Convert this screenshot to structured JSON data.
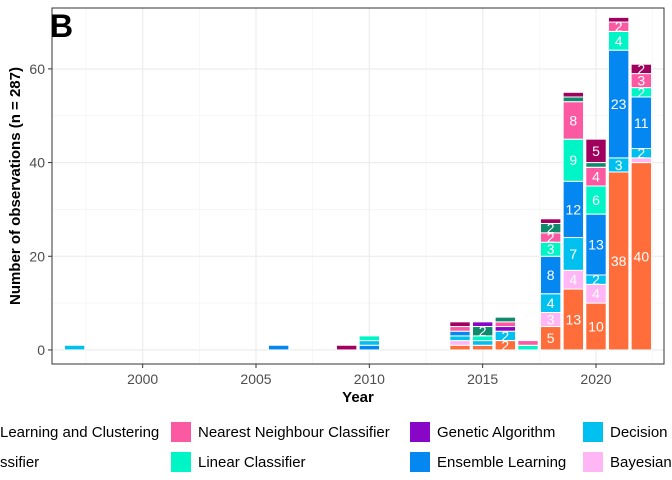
{
  "chart_data": {
    "type": "bar",
    "stacked": true,
    "panel_tag": "B",
    "xlabel": "Year",
    "ylabel": "Number of observations (n = 287)",
    "xlim": [
      1996,
      2023
    ],
    "ylim": [
      -3,
      73
    ],
    "xticks": [
      2000,
      2005,
      2010,
      2015,
      2020
    ],
    "yticks": [
      0,
      20,
      40,
      60
    ],
    "grid": true,
    "legend_position": "bottom",
    "series": [
      {
        "name": "Bayesian",
        "color": "#ff6d3a"
      },
      {
        "name": "Bayesian",
        "color": "#ffb6f5"
      },
      {
        "name": "Decision",
        "color": "#00c0ef"
      },
      {
        "name": "Ensemble Learning",
        "color": "#0587f2"
      },
      {
        "name": "Linear Classifier",
        "color": "#00f5c6"
      },
      {
        "name": "Nearest Neighbour Classifier",
        "color": "#fb5aa3"
      },
      {
        "name": "Genetic Algorithm",
        "color": "#8a06c6"
      },
      {
        "name": "",
        "color": "#0f8a6c"
      },
      {
        "name": "",
        "color": "#a0005e"
      }
    ],
    "bars": [
      {
        "year": 1997,
        "segments": [
          {
            "s": 2,
            "v": 1
          }
        ]
      },
      {
        "year": 2006,
        "segments": [
          {
            "s": 3,
            "v": 1
          }
        ]
      },
      {
        "year": 2009,
        "segments": [
          {
            "s": 8,
            "v": 1
          }
        ]
      },
      {
        "year": 2010,
        "segments": [
          {
            "s": 3,
            "v": 1
          },
          {
            "s": 2,
            "v": 1
          },
          {
            "s": 4,
            "v": 1
          }
        ]
      },
      {
        "year": 2014,
        "segments": [
          {
            "s": 0,
            "v": 1
          },
          {
            "s": 1,
            "v": 1
          },
          {
            "s": 2,
            "v": 1
          },
          {
            "s": 3,
            "v": 1
          },
          {
            "s": 5,
            "v": 1
          },
          {
            "s": 8,
            "v": 1
          }
        ]
      },
      {
        "year": 2015,
        "segments": [
          {
            "s": 0,
            "v": 1
          },
          {
            "s": 2,
            "v": 1
          },
          {
            "s": 4,
            "v": 1
          },
          {
            "s": 7,
            "v": 2,
            "label": "2"
          },
          {
            "s": 6,
            "v": 1
          }
        ]
      },
      {
        "year": 2016,
        "segments": [
          {
            "s": 0,
            "v": 2,
            "label": "2"
          },
          {
            "s": 2,
            "v": 2,
            "label": "2"
          },
          {
            "s": 6,
            "v": 1
          },
          {
            "s": 5,
            "v": 1
          },
          {
            "s": 7,
            "v": 1
          }
        ]
      },
      {
        "year": 2017,
        "segments": [
          {
            "s": 4,
            "v": 1
          },
          {
            "s": 5,
            "v": 1
          }
        ]
      },
      {
        "year": 2018,
        "segments": [
          {
            "s": 0,
            "v": 5,
            "label": "5"
          },
          {
            "s": 1,
            "v": 3,
            "label": "3"
          },
          {
            "s": 2,
            "v": 4,
            "label": "4"
          },
          {
            "s": 3,
            "v": 8,
            "label": "8"
          },
          {
            "s": 4,
            "v": 3,
            "label": "3"
          },
          {
            "s": 5,
            "v": 2,
            "label": "2"
          },
          {
            "s": 7,
            "v": 2,
            "label": "2"
          },
          {
            "s": 8,
            "v": 1
          }
        ]
      },
      {
        "year": 2019,
        "segments": [
          {
            "s": 0,
            "v": 13,
            "label": "13"
          },
          {
            "s": 1,
            "v": 4,
            "label": "4"
          },
          {
            "s": 2,
            "v": 7,
            "label": "7"
          },
          {
            "s": 3,
            "v": 12,
            "label": "12"
          },
          {
            "s": 4,
            "v": 9,
            "label": "9"
          },
          {
            "s": 5,
            "v": 8,
            "label": "8"
          },
          {
            "s": 7,
            "v": 1
          },
          {
            "s": 8,
            "v": 1
          }
        ]
      },
      {
        "year": 2020,
        "segments": [
          {
            "s": 0,
            "v": 10,
            "label": "10"
          },
          {
            "s": 1,
            "v": 4,
            "label": "4"
          },
          {
            "s": 2,
            "v": 2,
            "label": "2"
          },
          {
            "s": 3,
            "v": 13,
            "label": "13"
          },
          {
            "s": 4,
            "v": 6,
            "label": "6"
          },
          {
            "s": 5,
            "v": 4,
            "label": "4"
          },
          {
            "s": 7,
            "v": 1
          },
          {
            "s": 8,
            "v": 5,
            "label": "5"
          }
        ]
      },
      {
        "year": 2021,
        "segments": [
          {
            "s": 0,
            "v": 38,
            "label": "38"
          },
          {
            "s": 2,
            "v": 3,
            "label": "3"
          },
          {
            "s": 3,
            "v": 23,
            "label": "23"
          },
          {
            "s": 4,
            "v": 4,
            "label": "4"
          },
          {
            "s": 5,
            "v": 2,
            "label": "2"
          },
          {
            "s": 8,
            "v": 1
          }
        ]
      },
      {
        "year": 2022,
        "segments": [
          {
            "s": 0,
            "v": 40,
            "label": "40"
          },
          {
            "s": 1,
            "v": 1
          },
          {
            "s": 2,
            "v": 2,
            "label": "2"
          },
          {
            "s": 3,
            "v": 11,
            "label": "11"
          },
          {
            "s": 4,
            "v": 2,
            "label": "2"
          },
          {
            "s": 5,
            "v": 3,
            "label": "3"
          },
          {
            "s": 8,
            "v": 2,
            "label": "2"
          }
        ]
      }
    ],
    "legend": [
      {
        "label": "Learning and Clustering",
        "color": null
      },
      {
        "label": "Nearest Neighbour Classifier",
        "color": "#fb5aa3"
      },
      {
        "label": "Genetic Algorithm",
        "color": "#8a06c6"
      },
      {
        "label": "Decision",
        "color": "#00c0ef"
      },
      {
        "label": "ssifier",
        "color": null
      },
      {
        "label": "Linear Classifier",
        "color": "#00f5c6"
      },
      {
        "label": "Ensemble Learning",
        "color": "#0587f2"
      },
      {
        "label": "Bayesian",
        "color": "#ffb6f5"
      }
    ]
  }
}
